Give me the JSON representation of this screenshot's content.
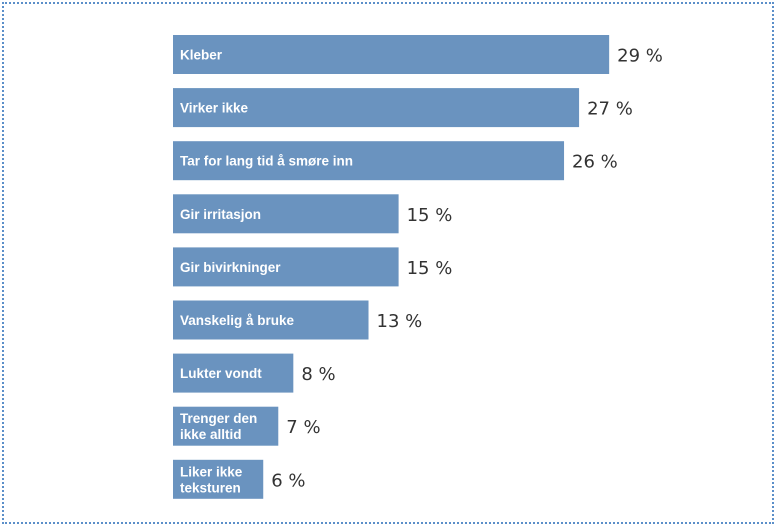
{
  "colors": {
    "bar": "#6a93bf",
    "border": "#5b8fc9",
    "value_text": "#333333"
  },
  "chart_data": {
    "type": "bar",
    "orientation": "horizontal",
    "categories": [
      [
        "Kleber"
      ],
      [
        "Virker ikke"
      ],
      [
        "Tar for lang tid å smøre inn"
      ],
      [
        "Gir irritasjon"
      ],
      [
        "Gir bivirkninger"
      ],
      [
        "Vanskelig å bruke"
      ],
      [
        "Lukter vondt"
      ],
      [
        "Trenger den",
        "ikke alltid"
      ],
      [
        "Liker ikke",
        "teksturen"
      ]
    ],
    "values": [
      29,
      27,
      26,
      15,
      15,
      13,
      8,
      7,
      6
    ],
    "value_labels": [
      "29 %",
      "27 %",
      "26 %",
      "15 %",
      "15 %",
      "13 %",
      "8 %",
      "7 %",
      "6 %"
    ],
    "unit": "%",
    "title": "",
    "xlabel": "",
    "ylabel": "",
    "grid": false
  }
}
